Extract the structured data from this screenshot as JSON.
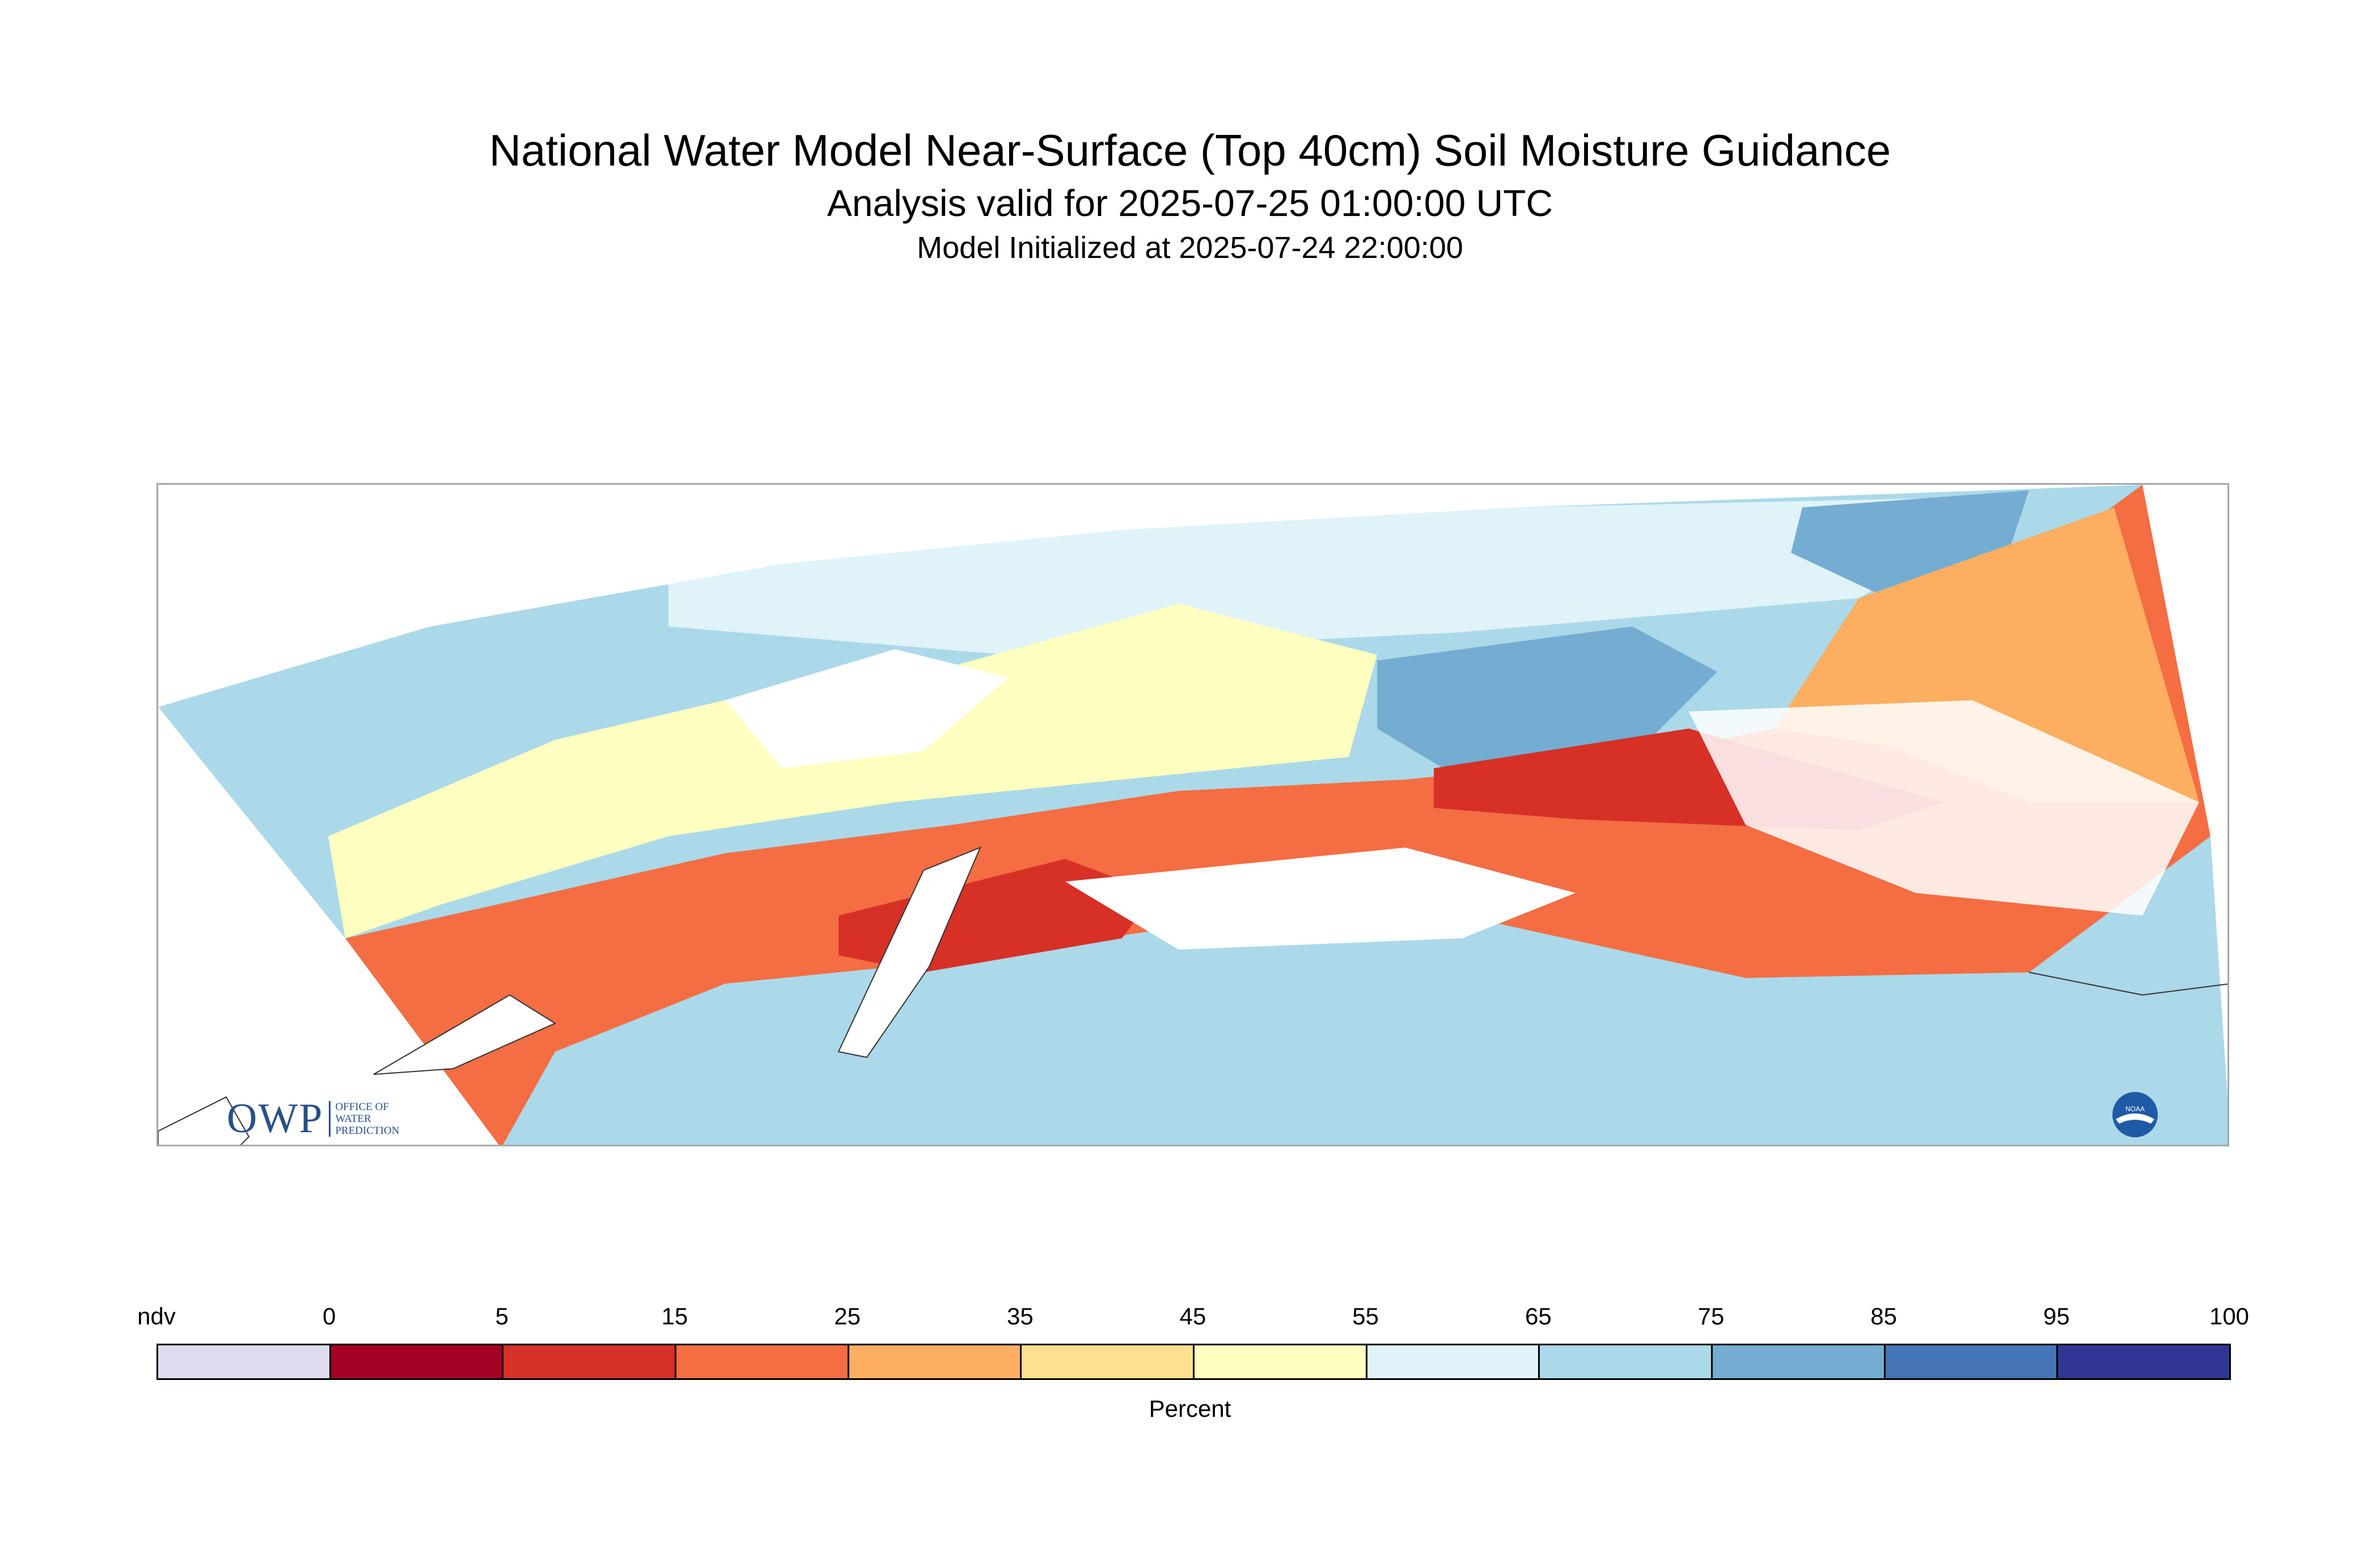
{
  "header": {
    "title": "National Water Model Near-Surface (Top 40cm) Soil Moisture Guidance",
    "subtitle": "Analysis valid for 2025-07-25 01:00:00 UTC",
    "init": "Model Initialized at 2025-07-24 22:00:00"
  },
  "legend": {
    "units": "Percent",
    "tick_labels": [
      "ndv",
      "0",
      "5",
      "15",
      "25",
      "35",
      "45",
      "55",
      "65",
      "75",
      "85",
      "95",
      "100"
    ],
    "bins": [
      {
        "label": "ndv",
        "color": "#dcdcee"
      },
      {
        "label": "0-5",
        "color": "#a50026"
      },
      {
        "label": "5-15",
        "color": "#d73027"
      },
      {
        "label": "15-25",
        "color": "#f46d43"
      },
      {
        "label": "25-35",
        "color": "#fdae61"
      },
      {
        "label": "35-45",
        "color": "#fee090"
      },
      {
        "label": "45-55",
        "color": "#ffffbf"
      },
      {
        "label": "55-65",
        "color": "#e0f3f8"
      },
      {
        "label": "65-75",
        "color": "#abd9e9"
      },
      {
        "label": "75-85",
        "color": "#74add1"
      },
      {
        "label": "85-95",
        "color": "#4575b4"
      },
      {
        "label": "95-100",
        "color": "#313695"
      }
    ]
  },
  "logos": {
    "owp_main": "OWP",
    "owp_sub": [
      "OFFICE OF",
      "WATER",
      "PREDICTION"
    ],
    "noaa_text": "NOAA"
  }
}
